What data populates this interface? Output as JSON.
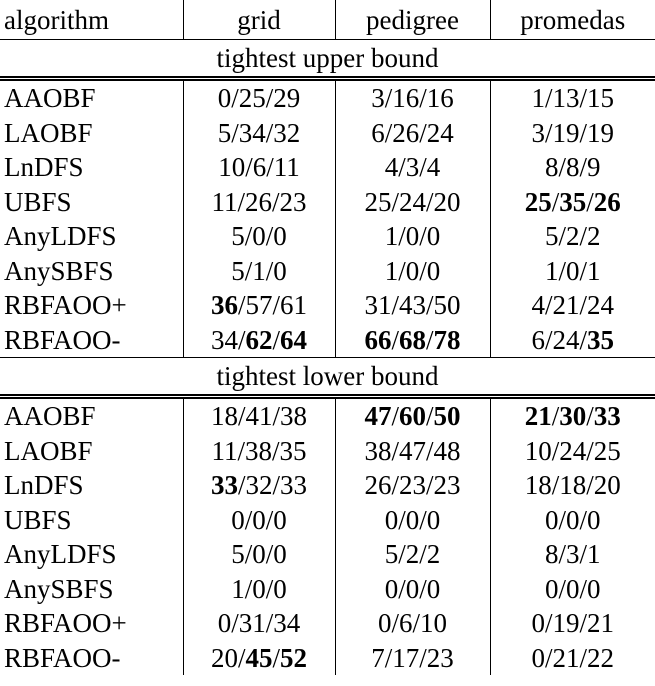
{
  "headers": [
    "algorithm",
    "grid",
    "pedigree",
    "promedas"
  ],
  "sections": [
    {
      "title": "tightest upper bound",
      "rows": [
        {
          "algorithm": "AAOBF",
          "cells": [
            {
              "text": "0/25/29",
              "bold": [
                false,
                false,
                false
              ]
            },
            {
              "text": "3/16/16",
              "bold": [
                false,
                false,
                false
              ]
            },
            {
              "text": "1/13/15",
              "bold": [
                false,
                false,
                false
              ]
            }
          ]
        },
        {
          "algorithm": "LAOBF",
          "cells": [
            {
              "text": "5/34/32",
              "bold": [
                false,
                false,
                false
              ]
            },
            {
              "text": "6/26/24",
              "bold": [
                false,
                false,
                false
              ]
            },
            {
              "text": "3/19/19",
              "bold": [
                false,
                false,
                false
              ]
            }
          ]
        },
        {
          "algorithm": "LnDFS",
          "cells": [
            {
              "text": "10/6/11",
              "bold": [
                false,
                false,
                false
              ]
            },
            {
              "text": "4/3/4",
              "bold": [
                false,
                false,
                false
              ]
            },
            {
              "text": "8/8/9",
              "bold": [
                false,
                false,
                false
              ]
            }
          ]
        },
        {
          "algorithm": "UBFS",
          "cells": [
            {
              "text": "11/26/23",
              "bold": [
                false,
                false,
                false
              ]
            },
            {
              "text": "25/24/20",
              "bold": [
                false,
                false,
                false
              ]
            },
            {
              "text": "25/35/26",
              "bold": [
                true,
                true,
                true
              ]
            }
          ]
        },
        {
          "algorithm": "AnyLDFS",
          "cells": [
            {
              "text": "5/0/0",
              "bold": [
                false,
                false,
                false
              ]
            },
            {
              "text": "1/0/0",
              "bold": [
                false,
                false,
                false
              ]
            },
            {
              "text": "5/2/2",
              "bold": [
                false,
                false,
                false
              ]
            }
          ]
        },
        {
          "algorithm": "AnySBFS",
          "cells": [
            {
              "text": "5/1/0",
              "bold": [
                false,
                false,
                false
              ]
            },
            {
              "text": "1/0/0",
              "bold": [
                false,
                false,
                false
              ]
            },
            {
              "text": "1/0/1",
              "bold": [
                false,
                false,
                false
              ]
            }
          ]
        },
        {
          "algorithm": "RBFAOO+",
          "cells": [
            {
              "text": "36/57/61",
              "bold": [
                true,
                false,
                false
              ]
            },
            {
              "text": "31/43/50",
              "bold": [
                false,
                false,
                false
              ]
            },
            {
              "text": "4/21/24",
              "bold": [
                false,
                false,
                false
              ]
            }
          ]
        },
        {
          "algorithm": "RBFAOO-",
          "cells": [
            {
              "text": "34/62/64",
              "bold": [
                false,
                true,
                true
              ]
            },
            {
              "text": "66/68/78",
              "bold": [
                true,
                true,
                true
              ]
            },
            {
              "text": "6/24/35",
              "bold": [
                false,
                false,
                true
              ]
            }
          ]
        }
      ]
    },
    {
      "title": "tightest lower bound",
      "rows": [
        {
          "algorithm": "AAOBF",
          "cells": [
            {
              "text": "18/41/38",
              "bold": [
                false,
                false,
                false
              ]
            },
            {
              "text": "47/60/50",
              "bold": [
                true,
                true,
                true
              ]
            },
            {
              "text": "21/30/33",
              "bold": [
                true,
                true,
                true
              ]
            }
          ]
        },
        {
          "algorithm": "LAOBF",
          "cells": [
            {
              "text": "11/38/35",
              "bold": [
                false,
                false,
                false
              ]
            },
            {
              "text": "38/47/48",
              "bold": [
                false,
                false,
                false
              ]
            },
            {
              "text": "10/24/25",
              "bold": [
                false,
                false,
                false
              ]
            }
          ]
        },
        {
          "algorithm": "LnDFS",
          "cells": [
            {
              "text": "33/32/33",
              "bold": [
                true,
                false,
                false
              ]
            },
            {
              "text": "26/23/23",
              "bold": [
                false,
                false,
                false
              ]
            },
            {
              "text": "18/18/20",
              "bold": [
                false,
                false,
                false
              ]
            }
          ]
        },
        {
          "algorithm": "UBFS",
          "cells": [
            {
              "text": "0/0/0",
              "bold": [
                false,
                false,
                false
              ]
            },
            {
              "text": "0/0/0",
              "bold": [
                false,
                false,
                false
              ]
            },
            {
              "text": "0/0/0",
              "bold": [
                false,
                false,
                false
              ]
            }
          ]
        },
        {
          "algorithm": "AnyLDFS",
          "cells": [
            {
              "text": "5/0/0",
              "bold": [
                false,
                false,
                false
              ]
            },
            {
              "text": "5/2/2",
              "bold": [
                false,
                false,
                false
              ]
            },
            {
              "text": "8/3/1",
              "bold": [
                false,
                false,
                false
              ]
            }
          ]
        },
        {
          "algorithm": "AnySBFS",
          "cells": [
            {
              "text": "1/0/0",
              "bold": [
                false,
                false,
                false
              ]
            },
            {
              "text": "0/0/0",
              "bold": [
                false,
                false,
                false
              ]
            },
            {
              "text": "0/0/0",
              "bold": [
                false,
                false,
                false
              ]
            }
          ]
        },
        {
          "algorithm": "RBFAOO+",
          "cells": [
            {
              "text": "0/31/34",
              "bold": [
                false,
                false,
                false
              ]
            },
            {
              "text": "0/6/10",
              "bold": [
                false,
                false,
                false
              ]
            },
            {
              "text": "0/19/21",
              "bold": [
                false,
                false,
                false
              ]
            }
          ]
        },
        {
          "algorithm": "RBFAOO-",
          "cells": [
            {
              "text": "20/45/52",
              "bold": [
                false,
                true,
                true
              ]
            },
            {
              "text": "7/17/23",
              "bold": [
                false,
                false,
                false
              ]
            },
            {
              "text": "0/21/22",
              "bold": [
                false,
                false,
                false
              ]
            }
          ]
        }
      ]
    }
  ]
}
